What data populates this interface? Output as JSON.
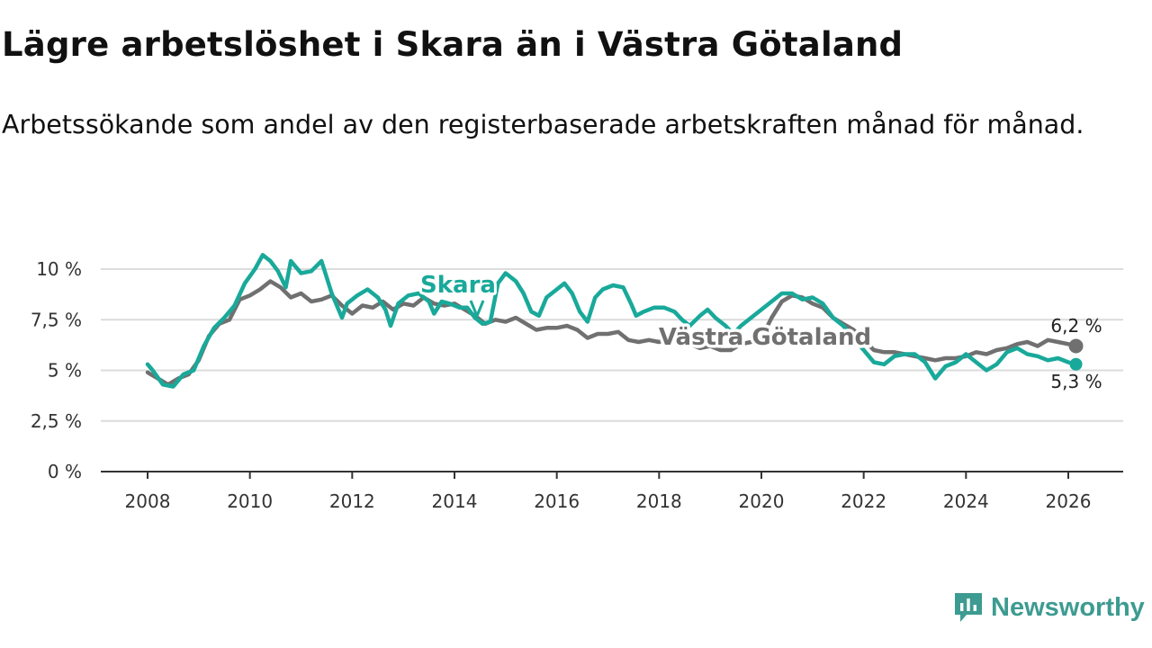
{
  "header": {
    "title": "Lägre arbetslöshet i Skara än i Västra Götaland",
    "subtitle": "Arbetssökande som andel av den registerbaserade arbetskraften månad för månad."
  },
  "brand": {
    "name": "Newsworthy",
    "icon": "newsworthy-logo-icon",
    "color": "#3d9b91"
  },
  "chart_data": {
    "type": "line",
    "title": "Lägre arbetslöshet i Skara än i Västra Götaland",
    "subtitle": "Arbetssökande som andel av den registerbaserade arbetskraften månad för månad.",
    "xlabel": "",
    "ylabel": "",
    "xlim": [
      2008,
      2026.4
    ],
    "ylim": [
      0,
      10
    ],
    "grid": true,
    "x_ticks": [
      2008,
      2010,
      2012,
      2014,
      2016,
      2018,
      2020,
      2022,
      2024,
      2026
    ],
    "x_tick_labels": [
      "2008",
      "2010",
      "2012",
      "2014",
      "2016",
      "2018",
      "2020",
      "2022",
      "2024",
      "2026"
    ],
    "y_ticks": [
      0,
      2.5,
      5,
      7.5,
      10
    ],
    "y_tick_labels": [
      "0 %",
      "2,5 %",
      "5 %",
      "7,5 %",
      "10 %"
    ],
    "series": [
      {
        "name": "Västra Götaland",
        "color": "#707070",
        "end_label": "6,2 %",
        "points": [
          [
            2008.0,
            4.9
          ],
          [
            2008.2,
            4.6
          ],
          [
            2008.4,
            4.3
          ],
          [
            2008.6,
            4.6
          ],
          [
            2008.8,
            4.8
          ],
          [
            2009.0,
            5.5
          ],
          [
            2009.2,
            6.7
          ],
          [
            2009.4,
            7.3
          ],
          [
            2009.6,
            7.5
          ],
          [
            2009.8,
            8.5
          ],
          [
            2010.0,
            8.7
          ],
          [
            2010.2,
            9.0
          ],
          [
            2010.4,
            9.4
          ],
          [
            2010.6,
            9.1
          ],
          [
            2010.8,
            8.6
          ],
          [
            2011.0,
            8.8
          ],
          [
            2011.2,
            8.4
          ],
          [
            2011.4,
            8.5
          ],
          [
            2011.6,
            8.7
          ],
          [
            2011.8,
            8.2
          ],
          [
            2012.0,
            7.8
          ],
          [
            2012.2,
            8.2
          ],
          [
            2012.4,
            8.1
          ],
          [
            2012.6,
            8.4
          ],
          [
            2012.8,
            8.0
          ],
          [
            2013.0,
            8.3
          ],
          [
            2013.2,
            8.2
          ],
          [
            2013.4,
            8.6
          ],
          [
            2013.6,
            8.3
          ],
          [
            2013.8,
            8.2
          ],
          [
            2014.0,
            8.3
          ],
          [
            2014.2,
            8.0
          ],
          [
            2014.4,
            7.7
          ],
          [
            2014.6,
            7.3
          ],
          [
            2014.8,
            7.5
          ],
          [
            2015.0,
            7.4
          ],
          [
            2015.2,
            7.6
          ],
          [
            2015.4,
            7.3
          ],
          [
            2015.6,
            7.0
          ],
          [
            2015.8,
            7.1
          ],
          [
            2016.0,
            7.1
          ],
          [
            2016.2,
            7.2
          ],
          [
            2016.4,
            7.0
          ],
          [
            2016.6,
            6.6
          ],
          [
            2016.8,
            6.8
          ],
          [
            2017.0,
            6.8
          ],
          [
            2017.2,
            6.9
          ],
          [
            2017.4,
            6.5
          ],
          [
            2017.6,
            6.4
          ],
          [
            2017.8,
            6.5
          ],
          [
            2018.0,
            6.4
          ],
          [
            2018.2,
            6.6
          ],
          [
            2018.4,
            6.3
          ],
          [
            2018.6,
            6.3
          ],
          [
            2018.8,
            6.1
          ],
          [
            2019.0,
            6.2
          ],
          [
            2019.2,
            6.0
          ],
          [
            2019.4,
            6.0
          ],
          [
            2019.6,
            6.3
          ],
          [
            2019.8,
            6.4
          ],
          [
            2020.0,
            6.6
          ],
          [
            2020.2,
            7.6
          ],
          [
            2020.4,
            8.4
          ],
          [
            2020.6,
            8.7
          ],
          [
            2020.8,
            8.6
          ],
          [
            2021.0,
            8.3
          ],
          [
            2021.2,
            8.1
          ],
          [
            2021.4,
            7.6
          ],
          [
            2021.6,
            7.3
          ],
          [
            2021.8,
            7.0
          ],
          [
            2022.0,
            6.5
          ],
          [
            2022.2,
            6.0
          ],
          [
            2022.4,
            5.9
          ],
          [
            2022.6,
            5.9
          ],
          [
            2022.8,
            5.8
          ],
          [
            2023.0,
            5.7
          ],
          [
            2023.2,
            5.6
          ],
          [
            2023.4,
            5.5
          ],
          [
            2023.6,
            5.6
          ],
          [
            2023.8,
            5.6
          ],
          [
            2024.0,
            5.7
          ],
          [
            2024.2,
            5.9
          ],
          [
            2024.4,
            5.8
          ],
          [
            2024.6,
            6.0
          ],
          [
            2024.8,
            6.1
          ],
          [
            2025.0,
            6.3
          ],
          [
            2025.2,
            6.4
          ],
          [
            2025.4,
            6.2
          ],
          [
            2025.6,
            6.5
          ],
          [
            2025.8,
            6.4
          ],
          [
            2026.0,
            6.3
          ],
          [
            2026.15,
            6.2
          ]
        ]
      },
      {
        "name": "Skara",
        "color": "#19a99a",
        "end_label": "5,3 %",
        "points": [
          [
            2008.0,
            5.3
          ],
          [
            2008.1,
            5.0
          ],
          [
            2008.3,
            4.3
          ],
          [
            2008.5,
            4.2
          ],
          [
            2008.7,
            4.8
          ],
          [
            2008.9,
            5.0
          ],
          [
            2009.1,
            6.2
          ],
          [
            2009.3,
            7.1
          ],
          [
            2009.5,
            7.6
          ],
          [
            2009.7,
            8.2
          ],
          [
            2009.9,
            9.3
          ],
          [
            2010.1,
            10.0
          ],
          [
            2010.25,
            10.7
          ],
          [
            2010.4,
            10.4
          ],
          [
            2010.55,
            9.9
          ],
          [
            2010.7,
            9.1
          ],
          [
            2010.8,
            10.4
          ],
          [
            2011.0,
            9.8
          ],
          [
            2011.2,
            9.9
          ],
          [
            2011.4,
            10.4
          ],
          [
            2011.6,
            8.8
          ],
          [
            2011.8,
            7.6
          ],
          [
            2011.9,
            8.3
          ],
          [
            2012.1,
            8.7
          ],
          [
            2012.3,
            9.0
          ],
          [
            2012.5,
            8.6
          ],
          [
            2012.65,
            8.0
          ],
          [
            2012.75,
            7.2
          ],
          [
            2012.9,
            8.3
          ],
          [
            2013.1,
            8.7
          ],
          [
            2013.3,
            8.8
          ],
          [
            2013.5,
            8.4
          ],
          [
            2013.6,
            7.8
          ],
          [
            2013.75,
            8.4
          ],
          [
            2013.9,
            8.3
          ],
          [
            2014.1,
            8.1
          ],
          [
            2014.25,
            8.1
          ],
          [
            2014.4,
            7.6
          ],
          [
            2014.55,
            7.3
          ],
          [
            2014.7,
            7.4
          ],
          [
            2014.85,
            9.3
          ],
          [
            2015.0,
            9.8
          ],
          [
            2015.2,
            9.4
          ],
          [
            2015.35,
            8.8
          ],
          [
            2015.5,
            7.9
          ],
          [
            2015.65,
            7.7
          ],
          [
            2015.8,
            8.6
          ],
          [
            2016.0,
            9.0
          ],
          [
            2016.15,
            9.3
          ],
          [
            2016.3,
            8.8
          ],
          [
            2016.45,
            7.9
          ],
          [
            2016.6,
            7.4
          ],
          [
            2016.75,
            8.6
          ],
          [
            2016.9,
            9.0
          ],
          [
            2017.1,
            9.2
          ],
          [
            2017.3,
            9.1
          ],
          [
            2017.45,
            8.3
          ],
          [
            2017.55,
            7.7
          ],
          [
            2017.7,
            7.9
          ],
          [
            2017.9,
            8.1
          ],
          [
            2018.1,
            8.1
          ],
          [
            2018.3,
            7.9
          ],
          [
            2018.45,
            7.5
          ],
          [
            2018.6,
            7.2
          ],
          [
            2018.8,
            7.7
          ],
          [
            2018.95,
            8.0
          ],
          [
            2019.1,
            7.6
          ],
          [
            2019.3,
            7.2
          ],
          [
            2019.45,
            6.8
          ],
          [
            2019.6,
            7.2
          ],
          [
            2019.8,
            7.6
          ],
          [
            2020.0,
            8.0
          ],
          [
            2020.2,
            8.4
          ],
          [
            2020.4,
            8.8
          ],
          [
            2020.6,
            8.8
          ],
          [
            2020.8,
            8.5
          ],
          [
            2021.0,
            8.6
          ],
          [
            2021.2,
            8.3
          ],
          [
            2021.4,
            7.6
          ],
          [
            2021.6,
            7.2
          ],
          [
            2021.8,
            6.6
          ],
          [
            2022.0,
            6.0
          ],
          [
            2022.2,
            5.4
          ],
          [
            2022.4,
            5.3
          ],
          [
            2022.6,
            5.7
          ],
          [
            2022.8,
            5.8
          ],
          [
            2023.0,
            5.8
          ],
          [
            2023.2,
            5.4
          ],
          [
            2023.4,
            4.6
          ],
          [
            2023.6,
            5.2
          ],
          [
            2023.8,
            5.4
          ],
          [
            2024.0,
            5.8
          ],
          [
            2024.2,
            5.4
          ],
          [
            2024.4,
            5.0
          ],
          [
            2024.6,
            5.3
          ],
          [
            2024.8,
            5.9
          ],
          [
            2025.0,
            6.1
          ],
          [
            2025.2,
            5.8
          ],
          [
            2025.4,
            5.7
          ],
          [
            2025.6,
            5.5
          ],
          [
            2025.8,
            5.6
          ],
          [
            2026.0,
            5.4
          ],
          [
            2026.15,
            5.3
          ]
        ]
      }
    ]
  }
}
